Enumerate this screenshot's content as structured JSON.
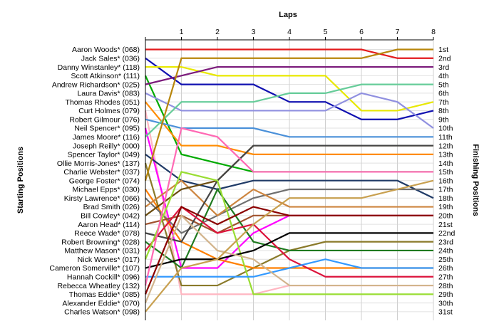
{
  "chart_data": {
    "type": "line",
    "title": "",
    "xlabel": "Laps",
    "ylabel_left": "Starting Positions",
    "ylabel_right": "Finishing Positions",
    "laps": [
      "1",
      "2",
      "3",
      "4",
      "5",
      "6",
      "7",
      "8"
    ],
    "x": [
      0,
      1,
      2,
      3,
      4,
      5,
      6,
      7,
      8
    ],
    "ylim": [
      1,
      31
    ],
    "y_inverted": true,
    "grid": true,
    "starting_positions": [
      "Aaron Woods* (068)",
      "Jack Sales* (036)",
      "Danny Winstanley* (118)",
      "Scott Atkinson* (111)",
      "Andrew Richardson* (025)",
      "Laura Davis* (083)",
      "Thomas Rhodes (051)",
      "Curt Holmes (079)",
      "Robert Gilmour (076)",
      "Neil Spencer* (095)",
      "James Moore* (116)",
      "Joseph Reilly* (000)",
      "Spencer Taylor* (049)",
      "Ollie Morris-Jones* (137)",
      "Charlie Webster* (037)",
      "George Foster* (074)",
      "Michael Epps* (030)",
      "Kirsty Lawrence* (066)",
      "Brad Smith (026)",
      "Bill Cowley* (042)",
      "Aaron Head* (114)",
      "Reece Wade* (078)",
      "Robert Browning* (028)",
      "Matthew Mason* (031)",
      "Nick Wones* (017)",
      "Cameron Somerville* (107)",
      "Hannah Cockill* (096)",
      "Rebecca Wheatley (132)",
      "Thomas Eddie* (085)",
      "Alexander Eddie* (070)",
      "Charles Watson* (098)"
    ],
    "finishing_positions": [
      "1st",
      "2nd",
      "3rd",
      "4th",
      "5th",
      "6th",
      "7th",
      "8th",
      "9th",
      "10th",
      "11th",
      "12th",
      "13th",
      "14th",
      "15th",
      "16th",
      "17th",
      "18th",
      "19th",
      "20th",
      "21st",
      "22nd",
      "23rd",
      "24th",
      "25th",
      "26th",
      "27th",
      "28th",
      "29th",
      "30th",
      "31st"
    ],
    "series": [
      {
        "color": "#e31a1c",
        "positions": [
          1,
          1,
          1,
          1,
          1,
          1,
          1,
          2,
          2
        ]
      },
      {
        "color": "#1010b0",
        "positions": [
          2,
          5,
          5,
          5,
          7,
          7,
          9,
          9,
          8
        ]
      },
      {
        "color": "#e8e800",
        "positions": [
          3,
          3,
          4,
          4,
          4,
          4,
          8,
          8,
          7
        ]
      },
      {
        "color": "#00aa00",
        "positions": [
          4,
          13,
          14,
          15,
          15,
          15,
          15,
          15,
          15
        ]
      },
      {
        "color": "#7b1a7b",
        "positions": [
          5,
          4,
          3,
          3,
          3,
          3,
          3,
          3,
          3
        ]
      },
      {
        "color": "#9090e0",
        "positions": [
          6,
          8,
          8,
          8,
          8,
          8,
          6,
          7,
          10
        ]
      },
      {
        "color": "#ff8c00",
        "positions": [
          7,
          12,
          12,
          13,
          13,
          13,
          13,
          13,
          13
        ]
      },
      {
        "color": "#ffb6c1",
        "positions": [
          8,
          29,
          29,
          29,
          28,
          28,
          28,
          28,
          28
        ]
      },
      {
        "color": "#4a90d9",
        "positions": [
          9,
          10,
          10,
          10,
          11,
          11,
          11,
          11,
          11
        ]
      },
      {
        "color": "#ff00ff",
        "positions": [
          10,
          26,
          26,
          22,
          20,
          20,
          20,
          20,
          20
        ]
      },
      {
        "color": "#66cc99",
        "positions": [
          11,
          7,
          7,
          7,
          6,
          6,
          5,
          5,
          5
        ]
      },
      {
        "color": "#1f3a66",
        "positions": [
          13,
          16,
          17,
          16,
          16,
          16,
          16,
          16,
          18
        ]
      },
      {
        "color": "#8a7a2a",
        "positions": [
          14,
          28,
          28,
          26,
          24,
          23,
          23,
          23,
          23
        ]
      },
      {
        "color": "#b8860b",
        "positions": [
          16,
          2,
          2,
          2,
          2,
          2,
          2,
          1,
          1
        ]
      },
      {
        "color": "#ff7f00",
        "positions": [
          17,
          23,
          25,
          26,
          26,
          26,
          26,
          26,
          26
        ]
      },
      {
        "color": "#707070",
        "positions": [
          18,
          22,
          20,
          18,
          17,
          17,
          17,
          17,
          17
        ]
      },
      {
        "color": "#cd853f",
        "positions": [
          19,
          16,
          20,
          17,
          19,
          19,
          19,
          19,
          19
        ]
      },
      {
        "color": "#6b4c10",
        "positions": [
          20,
          17,
          16,
          12,
          12,
          12,
          12,
          12,
          12
        ]
      },
      {
        "color": "#a0522d",
        "positions": [
          21,
          20,
          22,
          20,
          20,
          20,
          20,
          20,
          20
        ]
      },
      {
        "color": "#444444",
        "positions": [
          22,
          23,
          16,
          12,
          12,
          12,
          12,
          12,
          12
        ]
      },
      {
        "color": "#1f7a1f",
        "positions": [
          23,
          26,
          17,
          23,
          24,
          24,
          24,
          24,
          24
        ]
      },
      {
        "color": "#dc143c",
        "positions": [
          24,
          19,
          22,
          21,
          25,
          27,
          27,
          27,
          27
        ]
      },
      {
        "color": "#99dd33",
        "positions": [
          25,
          15,
          16,
          29,
          29,
          29,
          29,
          29,
          29
        ]
      },
      {
        "color": "#000000",
        "positions": [
          26,
          25,
          25,
          24,
          22,
          22,
          22,
          22,
          22
        ]
      },
      {
        "color": "#3399ff",
        "positions": [
          27,
          27,
          27,
          27,
          26,
          25,
          26,
          26,
          26
        ]
      },
      {
        "color": "#ff69b4",
        "positions": [
          28,
          10,
          11,
          15,
          15,
          15,
          15,
          15,
          15
        ]
      },
      {
        "color": "#8b0000",
        "positions": [
          29,
          19,
          21,
          19,
          20,
          20,
          20,
          20,
          20
        ]
      },
      {
        "color": "#d2b48c",
        "positions": [
          30,
          20,
          24,
          25,
          28,
          28,
          28,
          28,
          28
        ]
      },
      {
        "color": "#c8a050",
        "positions": [
          31,
          26,
          25,
          21,
          18,
          18,
          18,
          17,
          16
        ]
      }
    ]
  }
}
